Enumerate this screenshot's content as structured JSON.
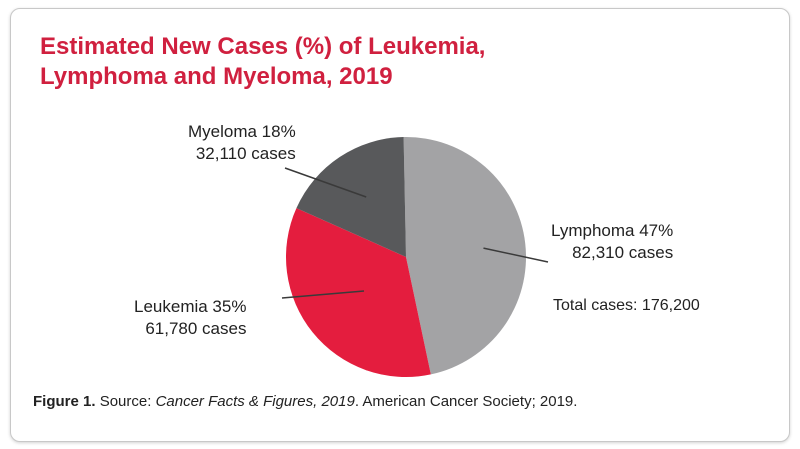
{
  "chart_data": {
    "type": "pie",
    "title_line1": "Estimated New Cases (%) of Leukemia,",
    "title_line2": "Lymphoma and Myeloma, 2019",
    "slices": [
      {
        "name": "Lymphoma",
        "percent_label": "Lymphoma 47%",
        "cases_label": "82,310 cases",
        "value": 47,
        "cases": 82310,
        "color": "#a3a3a5"
      },
      {
        "name": "Leukemia",
        "percent_label": "Leukemia 35%",
        "cases_label": "61,780 cases",
        "value": 35,
        "cases": 61780,
        "color": "#e41d3e"
      },
      {
        "name": "Myeloma",
        "percent_label": "Myeloma 18%",
        "cases_label": "32,110 cases",
        "value": 18,
        "cases": 32110,
        "color": "#58595b"
      }
    ],
    "total_label": "Total cases: 176,200",
    "total": 176200
  },
  "caption": {
    "figure": "Figure 1.",
    "source_prefix": "Source:",
    "source_title": "Cancer Facts & Figures, 2019",
    "source_suffix": ". American Cancer Society; 2019."
  }
}
